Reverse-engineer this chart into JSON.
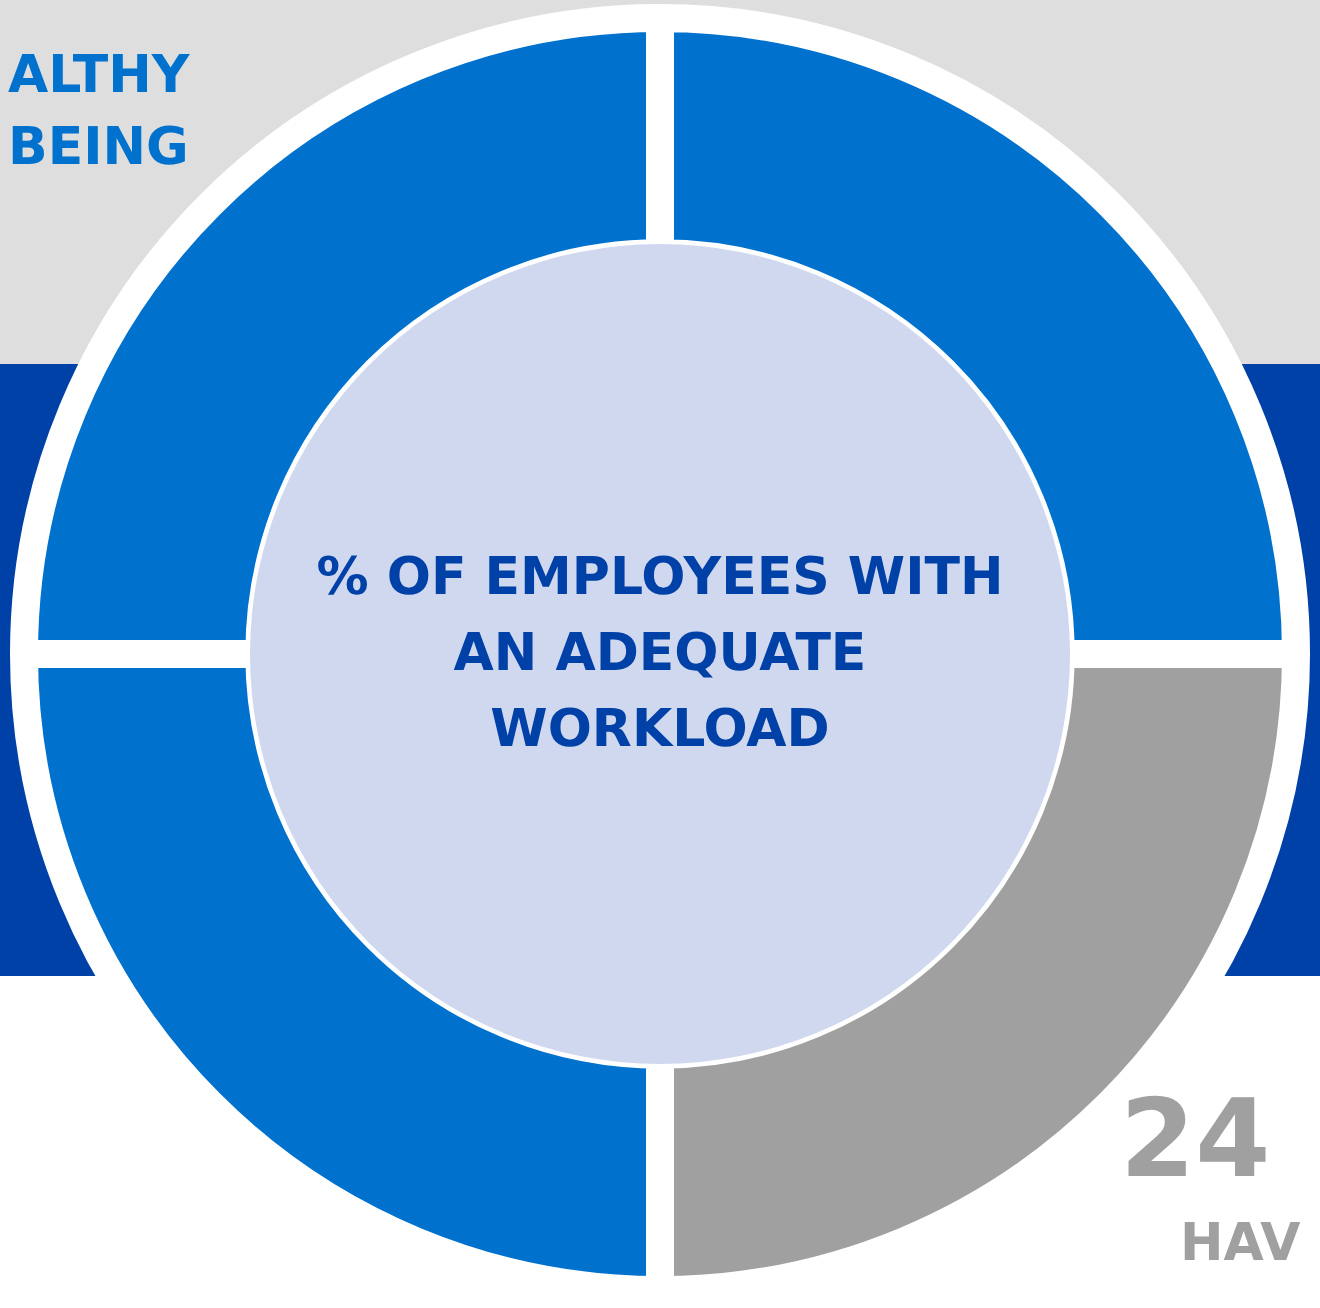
{
  "chart_data": {
    "type": "donut",
    "title": "% OF EMPLOYEES WITH AN ADEQUATE WORKLOAD",
    "categories": [
      null,
      null,
      null,
      null
    ],
    "values": [
      25,
      25,
      25,
      25
    ],
    "colors": [
      "#0072ce",
      "#a0a0a0",
      "#0072ce",
      "#0072ce"
    ],
    "annotations": [
      "ALTHY\nBEING",
      "24",
      "HAV"
    ],
    "legend": false
  }
}
